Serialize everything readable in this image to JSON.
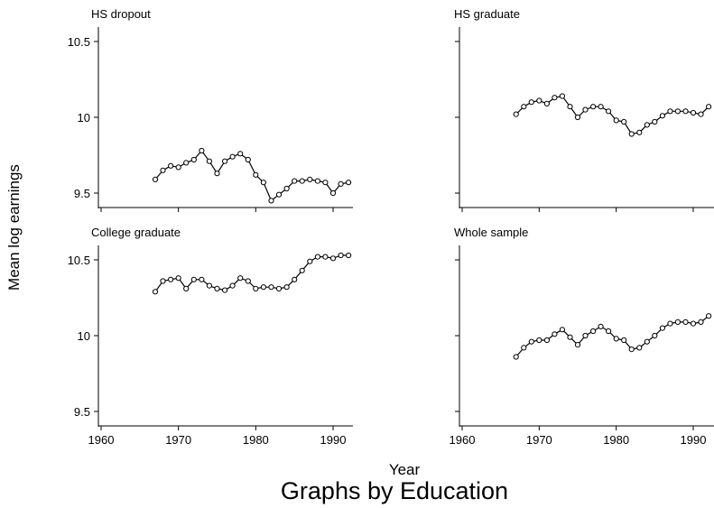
{
  "chart_data": {
    "type": "line",
    "layout": "2x2 small multiples",
    "ylabel": "Mean log earnings",
    "xlabel": "Year",
    "caption": "Graphs by Education",
    "xlim": [
      1958,
      1993
    ],
    "ylim": [
      9.45,
      10.58
    ],
    "xticks": [
      1960,
      1970,
      1980,
      1990
    ],
    "yticks": [
      9.5,
      10,
      10.5
    ],
    "ytick_labels": [
      "9.5",
      "10",
      "10.5"
    ],
    "grid": false,
    "marker": "hollow circle",
    "x": [
      1967,
      1968,
      1969,
      1970,
      1971,
      1972,
      1973,
      1974,
      1975,
      1976,
      1977,
      1978,
      1979,
      1980,
      1981,
      1982,
      1983,
      1984,
      1985,
      1986,
      1987,
      1988,
      1989,
      1990,
      1991,
      1992
    ],
    "panels": [
      {
        "title": "HS dropout",
        "values": [
          9.59,
          9.65,
          9.68,
          9.67,
          9.7,
          9.72,
          9.78,
          9.71,
          9.63,
          9.71,
          9.74,
          9.76,
          9.72,
          9.62,
          9.57,
          9.45,
          9.49,
          9.53,
          9.58,
          9.58,
          9.59,
          9.58,
          9.57,
          9.5,
          9.56,
          9.57
        ]
      },
      {
        "title": "HS graduate",
        "values": [
          10.02,
          10.07,
          10.1,
          10.11,
          10.09,
          10.13,
          10.14,
          10.07,
          10.0,
          10.05,
          10.07,
          10.07,
          10.04,
          9.98,
          9.97,
          9.89,
          9.9,
          9.95,
          9.97,
          10.01,
          10.04,
          10.04,
          10.04,
          10.03,
          10.02,
          10.07
        ]
      },
      {
        "title": "College graduate",
        "values": [
          10.29,
          10.36,
          10.37,
          10.38,
          10.31,
          10.37,
          10.37,
          10.33,
          10.31,
          10.3,
          10.33,
          10.38,
          10.36,
          10.31,
          10.32,
          10.32,
          10.31,
          10.32,
          10.37,
          10.43,
          10.49,
          10.52,
          10.52,
          10.51,
          10.53,
          10.53
        ]
      },
      {
        "title": "Whole sample",
        "values": [
          9.86,
          9.92,
          9.96,
          9.97,
          9.97,
          10.01,
          10.04,
          9.99,
          9.94,
          10.0,
          10.03,
          10.06,
          10.03,
          9.98,
          9.97,
          9.91,
          9.92,
          9.96,
          10.0,
          10.05,
          10.08,
          10.09,
          10.09,
          10.08,
          10.09,
          10.13
        ]
      }
    ]
  }
}
